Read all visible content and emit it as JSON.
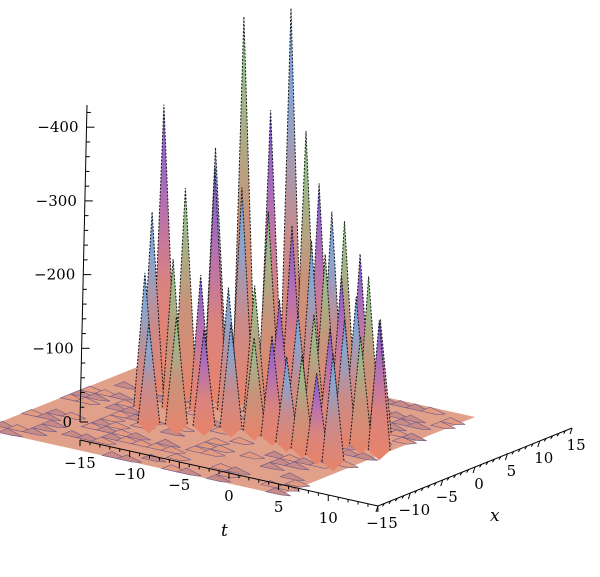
{
  "chart_data": {
    "type": "surface3d",
    "title": "",
    "xlabel": "t",
    "ylabel": "x",
    "zlabel": "",
    "xlim": [
      -15,
      15
    ],
    "ylim": [
      -15,
      15
    ],
    "zlim": [
      0,
      -430
    ],
    "x_ticks": [
      "−15",
      "−10",
      "−5",
      "0",
      "5",
      "10"
    ],
    "x_tick_values": [
      -15,
      -10,
      -5,
      0,
      5,
      10
    ],
    "y_ticks": [
      "−15",
      "−10",
      "−5",
      "0",
      "5",
      "10",
      "15"
    ],
    "y_tick_values": [
      -15,
      -10,
      -5,
      0,
      5,
      10,
      15
    ],
    "z_ticks": [
      "0",
      "−100",
      "−200",
      "−300",
      "−400"
    ],
    "z_tick_values": [
      0,
      -100,
      -200,
      -300,
      -400
    ],
    "peaks": [
      {
        "t": -13.2,
        "x": 10.2,
        "value": -355
      },
      {
        "t": -9.5,
        "x": 12.5,
        "value": -300
      },
      {
        "t": -7.3,
        "x": 13.5,
        "value": -480
      },
      {
        "t": -4.8,
        "x": 13.8,
        "value": -360
      },
      {
        "t": -3.2,
        "x": 14.5,
        "value": -500
      },
      {
        "t": -1.5,
        "x": 14.2,
        "value": -340
      },
      {
        "t": 0.6,
        "x": 13.0,
        "value": -280
      },
      {
        "t": 2.4,
        "x": 12.2,
        "value": -250
      },
      {
        "t": 4.2,
        "x": 11.4,
        "value": -245
      },
      {
        "t": 6.3,
        "x": 10.6,
        "value": -210
      },
      {
        "t": -11.0,
        "x": 5.0,
        "value": -235
      },
      {
        "t": -8.5,
        "x": 6.3,
        "value": -270
      },
      {
        "t": -6.3,
        "x": 7.5,
        "value": -300
      },
      {
        "t": -4.3,
        "x": 8.6,
        "value": -275
      },
      {
        "t": -2.3,
        "x": 9.6,
        "value": -245
      },
      {
        "t": -0.3,
        "x": 10.2,
        "value": -230
      },
      {
        "t": 1.6,
        "x": 10.3,
        "value": -215
      },
      {
        "t": 3.5,
        "x": 9.5,
        "value": -205
      },
      {
        "t": 5.6,
        "x": 8.8,
        "value": -185
      },
      {
        "t": 7.6,
        "x": 8.0,
        "value": -165
      },
      {
        "t": 9.3,
        "x": 7.3,
        "value": -200
      },
      {
        "t": 11.0,
        "x": 6.5,
        "value": -150
      },
      {
        "t": -8.8,
        "x": 0.5,
        "value": -175
      },
      {
        "t": -6.8,
        "x": 1.8,
        "value": -195
      },
      {
        "t": -4.8,
        "x": 3.0,
        "value": -175
      },
      {
        "t": -2.8,
        "x": 4.2,
        "value": -160
      },
      {
        "t": -0.8,
        "x": 5.2,
        "value": -165
      },
      {
        "t": 1.3,
        "x": 5.8,
        "value": -150
      },
      {
        "t": 3.3,
        "x": 5.6,
        "value": -140
      },
      {
        "t": 5.3,
        "x": 5.0,
        "value": -145
      },
      {
        "t": 7.3,
        "x": 4.4,
        "value": -135
      },
      {
        "t": 9.3,
        "x": 3.6,
        "value": -155
      },
      {
        "t": 11.3,
        "x": 3.0,
        "value": -140
      },
      {
        "t": 13.5,
        "x": 2.5,
        "value": -170
      },
      {
        "t": -5.8,
        "x": -3.5,
        "value": -130
      },
      {
        "t": -3.8,
        "x": -2.3,
        "value": -140
      },
      {
        "t": -1.8,
        "x": -1.1,
        "value": -125
      },
      {
        "t": 0.2,
        "x": 0.0,
        "value": -135
      },
      {
        "t": 2.2,
        "x": 0.5,
        "value": -120
      },
      {
        "t": 4.2,
        "x": 0.2,
        "value": -130
      },
      {
        "t": 6.2,
        "x": -0.6,
        "value": -110
      },
      {
        "t": 8.2,
        "x": -1.3,
        "value": -120
      },
      {
        "t": 10.2,
        "x": -2.1,
        "value": -105
      },
      {
        "t": 12.3,
        "x": -2.8,
        "value": -140
      }
    ],
    "grid": false,
    "legend": "none"
  }
}
